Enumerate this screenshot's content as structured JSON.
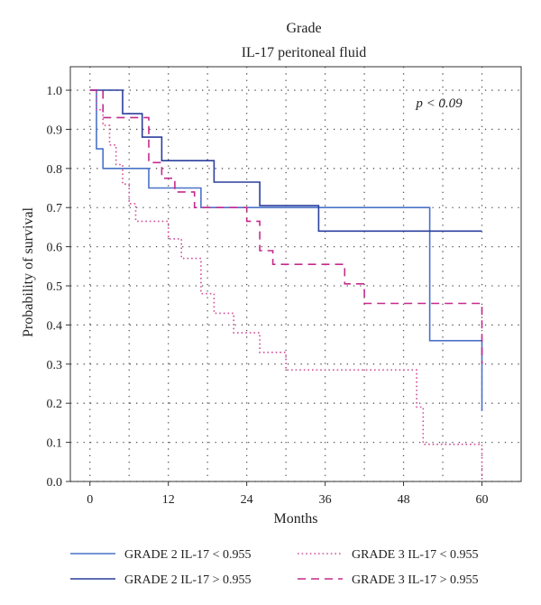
{
  "chart_data": {
    "type": "line",
    "title": "Grade",
    "subtitle": "IL-17 peritoneal fluid",
    "xlabel": "Months",
    "ylabel": "Probability of survival",
    "xlim": [
      -3,
      66
    ],
    "ylim": [
      0.0,
      1.06
    ],
    "x_ticks": [
      0,
      12,
      24,
      36,
      48,
      60
    ],
    "x_tick_labels": [
      "0",
      "12",
      "24",
      "36",
      "48",
      "60"
    ],
    "y_ticks": [
      0.0,
      0.1,
      0.2,
      0.3,
      0.4,
      0.5,
      0.6,
      0.7,
      0.8,
      0.9,
      1.0
    ],
    "y_tick_labels": [
      "0.0",
      "0.1",
      "0.2",
      "0.3",
      "0.4",
      "0.5",
      "0.6",
      "0.7",
      "0.8",
      "0.9",
      "1.0"
    ],
    "x_grid": [
      0,
      6,
      12,
      18,
      24,
      30,
      36,
      42,
      48,
      54,
      60
    ],
    "grid": true,
    "annotation": "p < 0.09",
    "legend_position": "bottom",
    "series": [
      {
        "name": "GRADE 2 IL-17 < 0.955",
        "color": "#4a72c8",
        "style": "solid",
        "x": [
          0,
          1,
          2,
          9,
          17,
          35,
          52,
          60
        ],
        "y": [
          1.0,
          0.85,
          0.8,
          0.75,
          0.7,
          0.7,
          0.36,
          0.18
        ]
      },
      {
        "name": "GRADE 2 IL-17 > 0.955",
        "color": "#2b3f9e",
        "style": "solid",
        "x": [
          0,
          5,
          8,
          11,
          19,
          26,
          35,
          60
        ],
        "y": [
          1.0,
          0.94,
          0.88,
          0.82,
          0.765,
          0.705,
          0.64,
          0.64
        ]
      },
      {
        "name": "GRADE 3 IL-17 < 0.955",
        "color": "#d0509a",
        "style": "dotted",
        "x": [
          0,
          1,
          2,
          3,
          4,
          5,
          6,
          7,
          10,
          12,
          14,
          17,
          19,
          22,
          26,
          30,
          50,
          51,
          60
        ],
        "y": [
          1.0,
          0.95,
          0.91,
          0.86,
          0.81,
          0.76,
          0.71,
          0.665,
          0.665,
          0.62,
          0.57,
          0.48,
          0.43,
          0.38,
          0.33,
          0.285,
          0.19,
          0.095,
          0.0
        ]
      },
      {
        "name": "GRADE 3 IL-17 > 0.955",
        "color": "#c42a8c",
        "style": "dashed",
        "x": [
          0,
          2,
          9,
          11,
          13,
          16,
          24,
          26,
          28,
          39,
          42,
          60
        ],
        "y": [
          1.0,
          0.93,
          0.815,
          0.775,
          0.74,
          0.7,
          0.665,
          0.59,
          0.555,
          0.505,
          0.455,
          0.3
        ]
      }
    ]
  }
}
